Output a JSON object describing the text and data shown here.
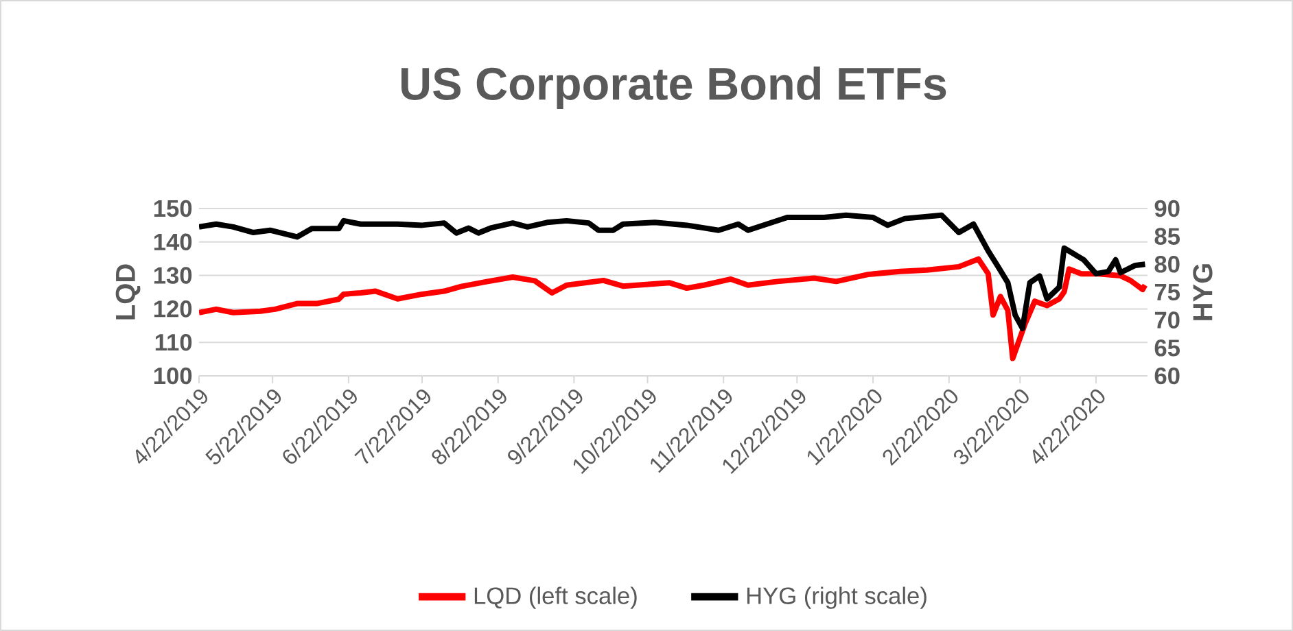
{
  "chart_data": {
    "type": "line",
    "title": "US Corporate Bond ETFs",
    "ylabel": "LQD",
    "y2label": "HYG",
    "xlim": [
      "2019-04-22",
      "2020-05-13"
    ],
    "xticks": [
      {
        "value": "2019-04-22",
        "label": "4/22/2019"
      },
      {
        "value": "2019-05-22",
        "label": "5/22/2019"
      },
      {
        "value": "2019-06-22",
        "label": "6/22/2019"
      },
      {
        "value": "2019-07-22",
        "label": "7/22/2019"
      },
      {
        "value": "2019-08-22",
        "label": "8/22/2019"
      },
      {
        "value": "2019-09-22",
        "label": "9/22/2019"
      },
      {
        "value": "2019-10-22",
        "label": "10/22/2019"
      },
      {
        "value": "2019-11-22",
        "label": "11/22/2019"
      },
      {
        "value": "2019-12-22",
        "label": "12/22/2019"
      },
      {
        "value": "2020-01-22",
        "label": "1/22/2020"
      },
      {
        "value": "2020-02-22",
        "label": "2/22/2020"
      },
      {
        "value": "2020-03-22",
        "label": "3/22/2020"
      },
      {
        "value": "2020-04-22",
        "label": "4/22/2020"
      }
    ],
    "ylim": [
      100,
      150
    ],
    "yticks": [
      100,
      110,
      120,
      130,
      140,
      150
    ],
    "y2lim": [
      60,
      90
    ],
    "y2ticks": [
      60,
      65,
      70,
      75,
      80,
      85,
      90
    ],
    "grid": "y",
    "legend": "bottom",
    "line_style": "solid",
    "series": [
      {
        "name": "LQD (left scale)",
        "color": "#ff0000",
        "x": [
          "2019-04-22",
          "2019-04-29",
          "2019-05-06",
          "2019-05-17",
          "2019-05-23",
          "2019-06-01",
          "2019-06-09",
          "2019-06-18",
          "2019-06-20",
          "2019-06-27",
          "2019-07-03",
          "2019-07-12",
          "2019-07-22",
          "2019-07-31",
          "2019-08-07",
          "2019-08-17",
          "2019-08-28",
          "2019-09-06",
          "2019-09-13",
          "2019-09-19",
          "2019-10-04",
          "2019-10-12",
          "2019-10-31",
          "2019-11-07",
          "2019-11-14",
          "2019-11-25",
          "2019-12-02",
          "2019-12-14",
          "2019-12-29",
          "2020-01-07",
          "2020-01-20",
          "2020-02-02",
          "2020-02-13",
          "2020-02-26",
          "2020-03-05",
          "2020-03-09",
          "2020-03-11",
          "2020-03-14",
          "2020-03-17",
          "2020-03-19",
          "2020-03-24",
          "2020-03-28",
          "2020-04-02",
          "2020-04-07",
          "2020-04-09",
          "2020-04-11",
          "2020-04-16",
          "2020-04-23",
          "2020-05-02",
          "2020-05-06",
          "2020-05-11",
          "2020-05-12"
        ],
        "values": [
          118.9,
          119.9,
          118.9,
          119.3,
          119.9,
          121.6,
          121.6,
          122.9,
          124.4,
          124.8,
          125.3,
          123.0,
          124.4,
          125.3,
          126.7,
          128.1,
          129.5,
          128.4,
          124.8,
          127.1,
          128.5,
          126.8,
          127.8,
          126.2,
          127.1,
          128.9,
          127.1,
          128.2,
          129.2,
          128.2,
          130.3,
          131.2,
          131.6,
          132.6,
          134.9,
          130.5,
          118.2,
          123.7,
          119.6,
          105.2,
          115.5,
          122.3,
          121.0,
          123.0,
          125.1,
          131.9,
          130.5,
          130.5,
          129.9,
          128.5,
          125.8,
          127.1
        ]
      },
      {
        "name": "HYG (right scale)",
        "color": "#000000",
        "axis": "y2",
        "x": [
          "2019-04-22",
          "2019-04-29",
          "2019-05-06",
          "2019-05-14",
          "2019-05-21",
          "2019-06-01",
          "2019-06-07",
          "2019-06-18",
          "2019-06-20",
          "2019-06-27",
          "2019-07-12",
          "2019-07-22",
          "2019-07-31",
          "2019-08-05",
          "2019-08-10",
          "2019-08-14",
          "2019-08-19",
          "2019-08-28",
          "2019-09-03",
          "2019-09-11",
          "2019-09-19",
          "2019-09-28",
          "2019-10-02",
          "2019-10-08",
          "2019-10-12",
          "2019-10-25",
          "2019-11-07",
          "2019-11-20",
          "2019-11-28",
          "2019-12-02",
          "2019-12-18",
          "2020-01-02",
          "2020-01-11",
          "2020-01-22",
          "2020-01-28",
          "2020-02-04",
          "2020-02-19",
          "2020-02-26",
          "2020-03-03",
          "2020-03-09",
          "2020-03-13",
          "2020-03-17",
          "2020-03-20",
          "2020-03-23",
          "2020-03-26",
          "2020-03-30",
          "2020-04-02",
          "2020-04-07",
          "2020-04-09",
          "2020-04-17",
          "2020-04-22",
          "2020-04-27",
          "2020-04-30",
          "2020-05-02",
          "2020-05-08",
          "2020-05-12"
        ],
        "values": [
          86.7,
          87.2,
          86.7,
          85.7,
          86.1,
          84.9,
          86.4,
          86.4,
          87.8,
          87.2,
          87.2,
          87.0,
          87.4,
          85.6,
          86.5,
          85.6,
          86.5,
          87.4,
          86.7,
          87.5,
          87.8,
          87.4,
          86.1,
          86.1,
          87.2,
          87.5,
          87.0,
          86.1,
          87.2,
          86.1,
          88.4,
          88.4,
          88.8,
          88.4,
          87.0,
          88.2,
          88.8,
          85.7,
          87.2,
          82.4,
          79.6,
          76.7,
          70.9,
          68.5,
          76.7,
          77.9,
          73.8,
          75.9,
          82.9,
          80.8,
          78.3,
          78.7,
          80.8,
          78.5,
          79.8,
          80.0
        ]
      }
    ]
  }
}
